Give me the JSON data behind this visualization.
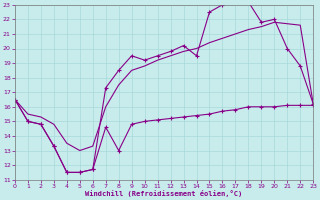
{
  "xlabel": "Windchill (Refroidissement éolien,°C)",
  "bg_color": "#c8ecec",
  "grid_color": "#a8d8d8",
  "line_color": "#880088",
  "xlim": [
    0,
    23
  ],
  "ylim": [
    11,
    23
  ],
  "xticks": [
    0,
    1,
    2,
    3,
    4,
    5,
    6,
    7,
    8,
    9,
    10,
    11,
    12,
    13,
    14,
    15,
    16,
    17,
    18,
    19,
    20,
    21,
    22,
    23
  ],
  "yticks": [
    11,
    12,
    13,
    14,
    15,
    16,
    17,
    18,
    19,
    20,
    21,
    22,
    23
  ],
  "line_upper_x": [
    0,
    1,
    2,
    3,
    4,
    5,
    6,
    7,
    8,
    9,
    10,
    11,
    12,
    13,
    14,
    15,
    16,
    17,
    18,
    19,
    20,
    21,
    22,
    23
  ],
  "line_upper_y": [
    16.5,
    15.0,
    14.8,
    13.3,
    11.5,
    11.5,
    11.7,
    17.3,
    18.5,
    19.5,
    19.2,
    19.5,
    19.8,
    20.2,
    19.5,
    22.5,
    23.0,
    23.2,
    23.2,
    21.8,
    22.0,
    20.0,
    18.8,
    16.2
  ],
  "line_lower_x": [
    0,
    1,
    2,
    3,
    4,
    5,
    6,
    7,
    8,
    9,
    10,
    11,
    12,
    13,
    14,
    15,
    16,
    17,
    18,
    19,
    20,
    21,
    22,
    23
  ],
  "line_lower_y": [
    16.5,
    15.0,
    14.8,
    13.3,
    11.5,
    11.5,
    11.7,
    14.6,
    13.0,
    14.8,
    15.0,
    15.1,
    15.2,
    15.3,
    15.4,
    15.5,
    15.7,
    15.8,
    16.0,
    16.0,
    16.0,
    16.1,
    16.1,
    16.1
  ],
  "line_diag_x": [
    0,
    1,
    2,
    3,
    4,
    5,
    6,
    7,
    8,
    9,
    10,
    11,
    12,
    13,
    14,
    15,
    16,
    17,
    18,
    19,
    20,
    21,
    22,
    23
  ],
  "line_diag_y": [
    16.5,
    15.5,
    15.3,
    14.8,
    13.5,
    13.0,
    13.3,
    16.0,
    17.5,
    18.5,
    18.8,
    19.2,
    19.5,
    19.8,
    20.0,
    20.4,
    20.7,
    21.0,
    21.3,
    21.5,
    21.8,
    21.7,
    21.6,
    16.2
  ]
}
